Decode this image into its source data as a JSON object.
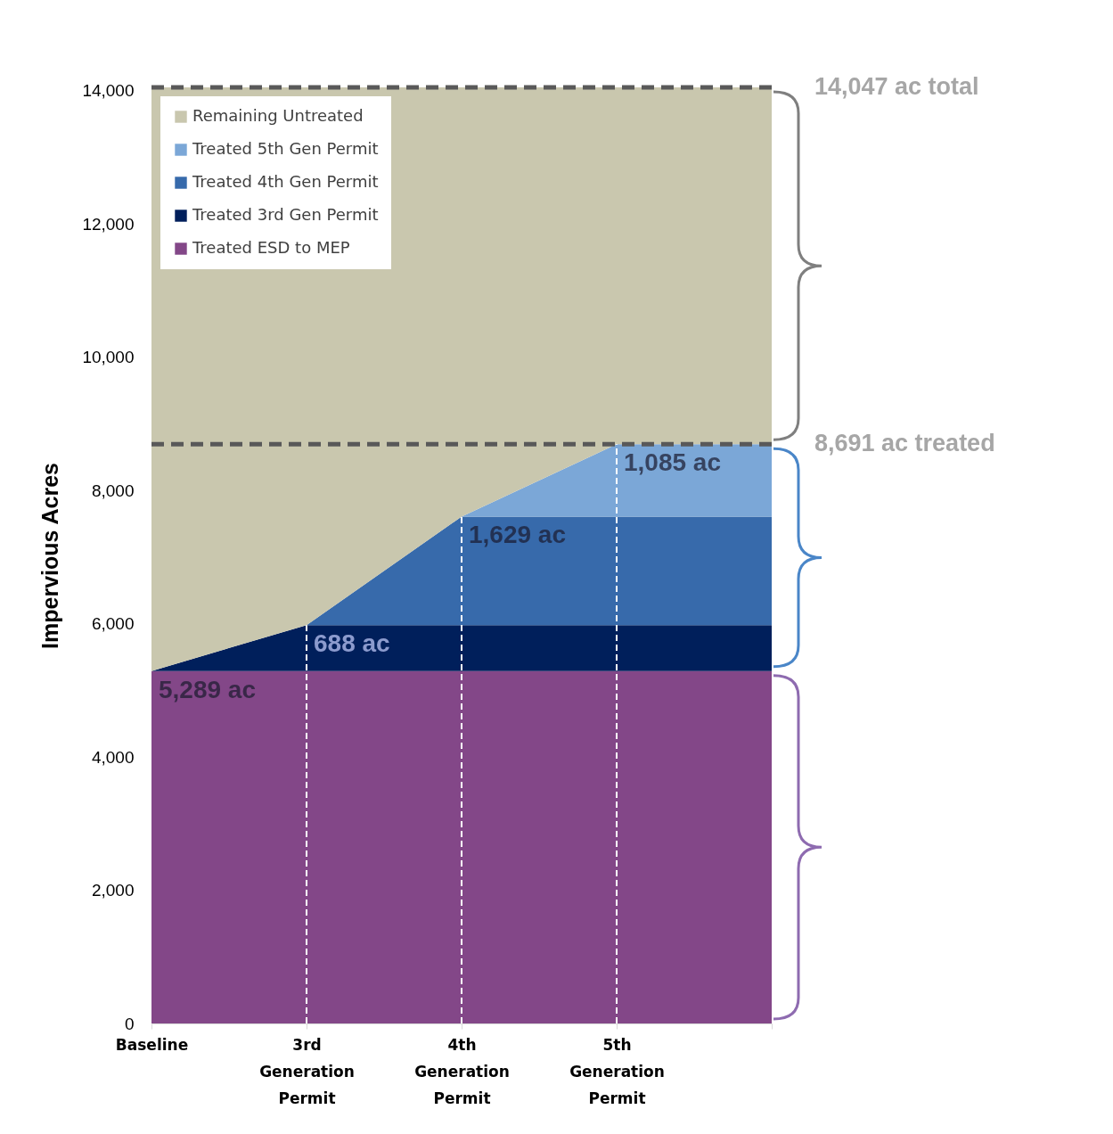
{
  "chart_data": {
    "type": "area",
    "stacked": true,
    "ylabel": "Impervious Acres",
    "categories": [
      "Baseline",
      "3rd Generation Permit",
      "4th Generation Permit",
      "5th Generation Permit",
      null
    ],
    "series": [
      {
        "name": "Treated ESD to MEP",
        "color": "#834788",
        "values": [
          5289,
          5289,
          5289,
          5289,
          5289
        ]
      },
      {
        "name": "Treated 3rd Gen Permit",
        "color": "#001f5b",
        "values": [
          0,
          688,
          688,
          688,
          688
        ]
      },
      {
        "name": "Treated 4th Gen Permit",
        "color": "#376aab",
        "values": [
          0,
          0,
          1629,
          1629,
          1629
        ]
      },
      {
        "name": "Treated 5th Gen Permit",
        "color": "#7ba7d7",
        "values": [
          0,
          0,
          0,
          1085,
          1085
        ]
      },
      {
        "name": "Remaining Untreated",
        "color": "#c9c7ae",
        "values": [
          8758,
          8070,
          6441,
          5356,
          5356
        ]
      }
    ],
    "ylim": [
      0,
      14047
    ],
    "yticks": [
      0,
      {
        "value": 2000,
        "label": "2,000"
      },
      {
        "value": 4000,
        "label": "4,000"
      },
      {
        "value": 6000,
        "label": "6,000"
      },
      {
        "value": 8000,
        "label": "8,000"
      },
      {
        "value": 10000,
        "label": "10,000"
      },
      {
        "value": 12000,
        "label": "12,000"
      },
      {
        "value": 14000,
        "label": "14,000"
      }
    ],
    "grid": false,
    "legend": "top left",
    "ref_lines": [
      {
        "axis": "y",
        "value": 14047,
        "label": "14,047 ac total",
        "color": "#595959",
        "line_style": "dashed"
      },
      {
        "axis": "y",
        "value": 8691,
        "label": "8,691 ac treated",
        "color": "#595959",
        "line_style": "dashed"
      },
      {
        "axis": "x",
        "value": "3rd Generation Permit",
        "color": "#ffffff",
        "line_style": "dashed"
      },
      {
        "axis": "x",
        "value": "4th Generation Permit",
        "color": "#ffffff",
        "line_style": "dashed"
      },
      {
        "axis": "x",
        "value": "5th Generation Permit",
        "color": "#ffffff",
        "line_style": "dashed"
      }
    ],
    "annotations": [
      {
        "text": "5,289 ac",
        "x": "Baseline",
        "y": 5289
      },
      {
        "text": "688 ac",
        "x": "3rd Generation Permit",
        "y": 5977
      },
      {
        "text": "1,629 ac",
        "x": "4th Generation Permit",
        "y": 7606
      },
      {
        "text": "1,085 ac",
        "x": "5th Generation Permit",
        "y": 8691
      }
    ]
  }
}
